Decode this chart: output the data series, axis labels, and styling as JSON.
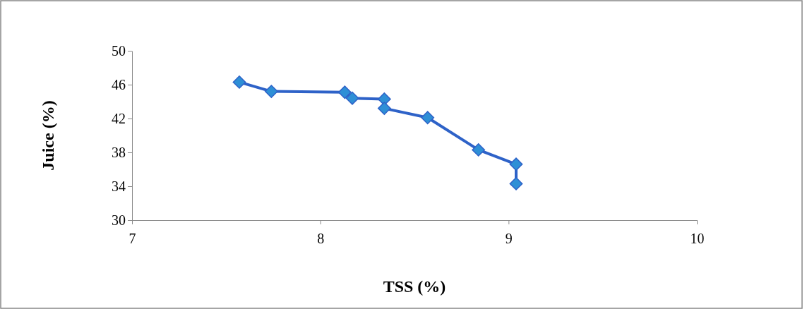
{
  "chart_data": {
    "type": "line",
    "xlabel": "TSS (%)",
    "ylabel": "Juice (%)",
    "x": [
      7.57,
      7.74,
      8.13,
      8.17,
      8.34,
      8.34,
      8.57,
      8.84,
      9.04,
      9.04
    ],
    "series": [
      {
        "color": "#2e62c8",
        "values": [
          46.3,
          45.2,
          45.1,
          44.4,
          44.3,
          43.2,
          42.1,
          38.3,
          36.6,
          34.3
        ]
      }
    ],
    "xlim": [
      7,
      10
    ],
    "xticks": [
      7,
      8,
      9,
      10
    ],
    "ylim": [
      30,
      50
    ],
    "yticks": [
      30,
      34,
      38,
      42,
      46,
      50
    ],
    "grid": false,
    "marker": "diamond",
    "line_style": "solid"
  }
}
